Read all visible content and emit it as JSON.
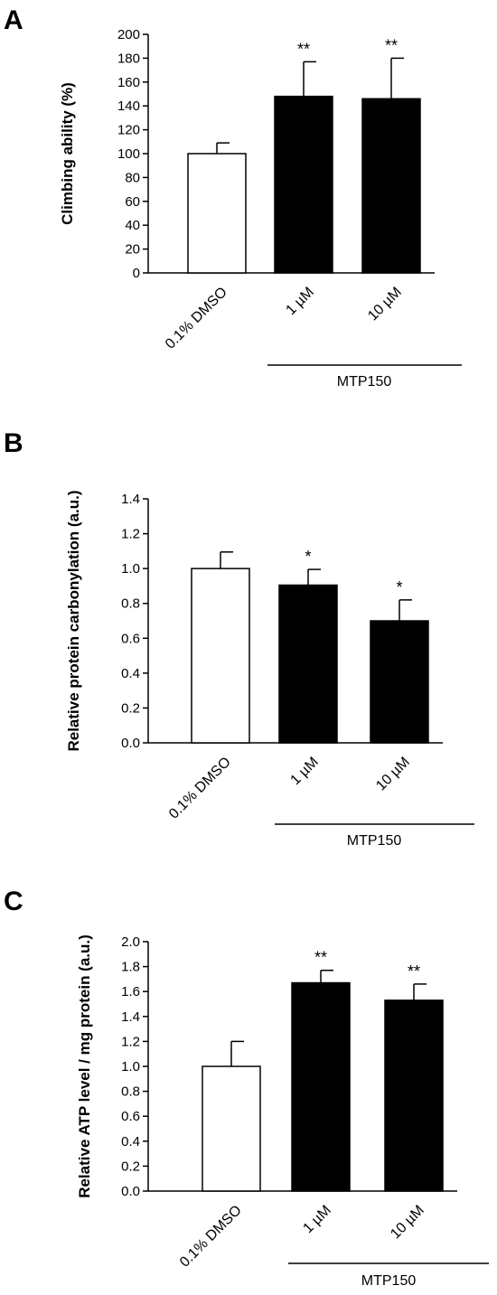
{
  "chart_data": [
    {
      "panel": "A",
      "type": "bar",
      "ylabel": "Climbing ability (%)",
      "categories": [
        "0.1% DMSO",
        "1 µM",
        "10 µM"
      ],
      "values": [
        100,
        148,
        146
      ],
      "errors": [
        9,
        29,
        34
      ],
      "significance": [
        "",
        "**",
        "**"
      ],
      "fills": [
        "#ffffff",
        "#000000",
        "#000000"
      ],
      "ylim": [
        0,
        200
      ],
      "yticks": [
        "0",
        "20",
        "40",
        "60",
        "80",
        "100",
        "120",
        "140",
        "160",
        "180",
        "200"
      ],
      "group_label": "MTP150"
    },
    {
      "panel": "B",
      "type": "bar",
      "ylabel": "Relative protein carbonylation (a.u.)",
      "categories": [
        "0.1% DMSO",
        "1 µM",
        "10 µM"
      ],
      "values": [
        1.0,
        0.905,
        0.7
      ],
      "errors": [
        0.095,
        0.09,
        0.12
      ],
      "significance": [
        "",
        "*",
        "*"
      ],
      "fills": [
        "#ffffff",
        "#000000",
        "#000000"
      ],
      "ylim": [
        0,
        1.4
      ],
      "yticks": [
        "0.0",
        "0.2",
        "0.4",
        "0.6",
        "0.8",
        "1.0",
        "1.2",
        "1.4"
      ],
      "group_label": "MTP150"
    },
    {
      "panel": "C",
      "type": "bar",
      "ylabel": "Relative ATP level / mg protein (a.u.)",
      "categories": [
        "0.1% DMSO",
        "1 µM",
        "10 µM"
      ],
      "values": [
        1.0,
        1.67,
        1.53
      ],
      "errors": [
        0.2,
        0.1,
        0.13
      ],
      "significance": [
        "",
        "**",
        "**"
      ],
      "fills": [
        "#ffffff",
        "#000000",
        "#000000"
      ],
      "ylim": [
        0,
        2.0
      ],
      "yticks": [
        "0.0",
        "0.2",
        "0.4",
        "0.6",
        "0.8",
        "1.0",
        "1.2",
        "1.4",
        "1.6",
        "1.8",
        "2.0"
      ],
      "group_label": "MTP150"
    }
  ]
}
